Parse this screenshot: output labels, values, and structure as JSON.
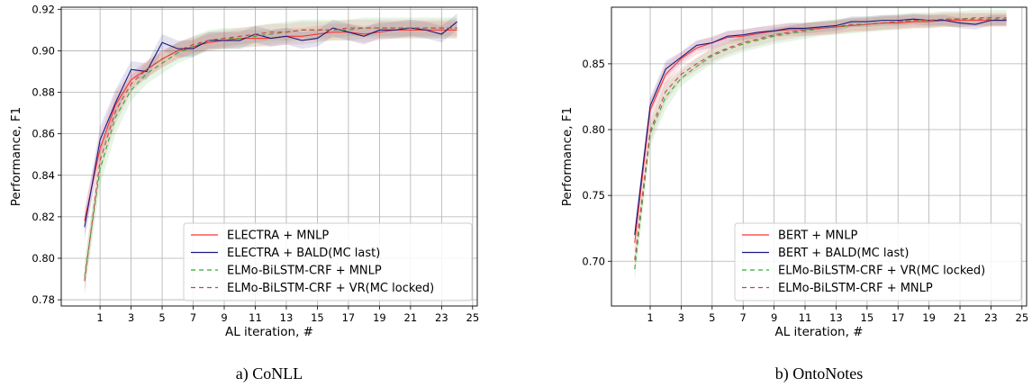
{
  "chart_data": [
    {
      "type": "line",
      "caption": "a) CoNLL",
      "xlabel": "AL iteration, #",
      "ylabel": "Performance, F1",
      "xlim": [
        -1.5,
        25.3
      ],
      "ylim": [
        0.777,
        0.921
      ],
      "xticks": [
        1,
        3,
        5,
        7,
        9,
        11,
        13,
        15,
        17,
        19,
        21,
        23,
        25
      ],
      "yticks": [
        0.78,
        0.8,
        0.82,
        0.84,
        0.86,
        0.88,
        0.9,
        0.92
      ],
      "ytick_labels": [
        "0.78",
        "0.80",
        "0.82",
        "0.84",
        "0.86",
        "0.88",
        "0.90",
        "0.92"
      ],
      "grid": true,
      "legend_position": "lower-right",
      "x": [
        0,
        1,
        2,
        3,
        4,
        5,
        6,
        7,
        8,
        9,
        10,
        11,
        12,
        13,
        14,
        15,
        16,
        17,
        18,
        19,
        20,
        21,
        22,
        23,
        24
      ],
      "series": [
        {
          "name": "ELECTRA + MNLP",
          "color": "#ff3333",
          "dash": "",
          "values": [
            0.818,
            0.853,
            0.874,
            0.886,
            0.891,
            0.896,
            0.9,
            0.902,
            0.904,
            0.905,
            0.906,
            0.906,
            0.906,
            0.907,
            0.907,
            0.908,
            0.909,
            0.909,
            0.908,
            0.909,
            0.91,
            0.91,
            0.91,
            0.91,
            0.91
          ],
          "band": 0.004
        },
        {
          "name": "ELECTRA + BALD(MC last)",
          "color": "#1a1a80",
          "dash": "",
          "values": [
            0.815,
            0.857,
            0.875,
            0.891,
            0.89,
            0.904,
            0.901,
            0.901,
            0.905,
            0.905,
            0.905,
            0.908,
            0.906,
            0.907,
            0.905,
            0.906,
            0.911,
            0.909,
            0.907,
            0.91,
            0.91,
            0.911,
            0.91,
            0.908,
            0.914
          ],
          "band": 0.004
        },
        {
          "name": "ELMo-BiLSTM-CRF + MNLP",
          "color": "#33aa33",
          "dash": "5,4",
          "values": [
            0.791,
            0.843,
            0.868,
            0.881,
            0.889,
            0.894,
            0.899,
            0.902,
            0.905,
            0.906,
            0.906,
            0.907,
            0.908,
            0.909,
            0.91,
            0.91,
            0.91,
            0.91,
            0.911,
            0.911,
            0.911,
            0.911,
            0.911,
            0.911,
            0.911
          ],
          "band": 0.005
        },
        {
          "name": "ELMo-BiLSTM-CRF + VR(MC locked)",
          "color": "#cc4444",
          "dash": "5,4",
          "values": [
            0.789,
            0.847,
            0.871,
            0.884,
            0.891,
            0.896,
            0.9,
            0.903,
            0.905,
            0.906,
            0.907,
            0.908,
            0.909,
            0.909,
            0.91,
            0.91,
            0.91,
            0.911,
            0.911,
            0.911,
            0.911,
            0.911,
            0.911,
            0.911,
            0.911
          ],
          "band": 0.004
        }
      ]
    },
    {
      "type": "line",
      "caption": "b) OntoNotes",
      "xlabel": "AL iteration, #",
      "ylabel": "Performance, F1",
      "xlim": [
        -1.5,
        25.3
      ],
      "ylim": [
        0.666,
        0.893
      ],
      "xticks": [
        1,
        3,
        5,
        7,
        9,
        11,
        13,
        15,
        17,
        19,
        21,
        23,
        25
      ],
      "yticks": [
        0.7,
        0.75,
        0.8,
        0.85
      ],
      "ytick_labels": [
        "0.70",
        "0.75",
        "0.80",
        "0.85"
      ],
      "grid": true,
      "legend_position": "lower-right",
      "x": [
        0,
        1,
        2,
        3,
        4,
        5,
        6,
        7,
        8,
        9,
        10,
        11,
        12,
        13,
        14,
        15,
        16,
        17,
        18,
        19,
        20,
        21,
        22,
        23,
        24
      ],
      "series": [
        {
          "name": "BERT + MNLP",
          "color": "#ff3333",
          "dash": "",
          "values": [
            0.714,
            0.815,
            0.842,
            0.854,
            0.862,
            0.866,
            0.87,
            0.871,
            0.873,
            0.875,
            0.876,
            0.876,
            0.877,
            0.878,
            0.879,
            0.88,
            0.881,
            0.881,
            0.882,
            0.882,
            0.883,
            0.883,
            0.883,
            0.883,
            0.883
          ],
          "band": 0.005
        },
        {
          "name": "BERT + BALD(MC last)",
          "color": "#1a1a80",
          "dash": "",
          "values": [
            0.72,
            0.818,
            0.846,
            0.855,
            0.864,
            0.866,
            0.871,
            0.872,
            0.874,
            0.875,
            0.877,
            0.877,
            0.878,
            0.879,
            0.882,
            0.882,
            0.883,
            0.883,
            0.884,
            0.883,
            0.883,
            0.881,
            0.88,
            0.883,
            0.883
          ],
          "band": 0.004
        },
        {
          "name": "ELMo-BiLSTM-CRF + VR(MC locked)",
          "color": "#33aa33",
          "dash": "5,4",
          "values": [
            0.694,
            0.797,
            0.825,
            0.839,
            0.848,
            0.856,
            0.861,
            0.865,
            0.868,
            0.871,
            0.873,
            0.875,
            0.877,
            0.878,
            0.879,
            0.88,
            0.881,
            0.882,
            0.883,
            0.883,
            0.884,
            0.884,
            0.885,
            0.885,
            0.885
          ],
          "band": 0.006
        },
        {
          "name": "ELMo-BiLSTM-CRF + MNLP",
          "color": "#cc4444",
          "dash": "5,4",
          "values": [
            0.701,
            0.799,
            0.829,
            0.842,
            0.85,
            0.857,
            0.862,
            0.866,
            0.869,
            0.872,
            0.874,
            0.876,
            0.877,
            0.878,
            0.88,
            0.88,
            0.881,
            0.882,
            0.883,
            0.883,
            0.884,
            0.884,
            0.884,
            0.884,
            0.884
          ],
          "band": 0.005
        }
      ]
    }
  ]
}
